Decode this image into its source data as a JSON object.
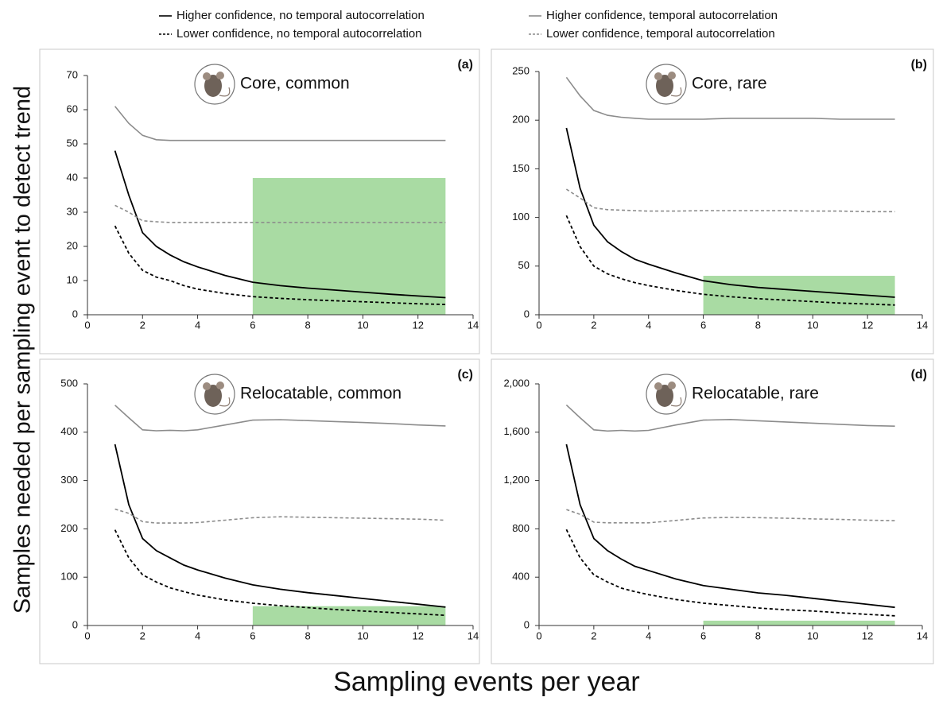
{
  "legend": [
    "Higher confidence, no temporal autocorrelation",
    "Lower confidence, no temporal autocorrelation",
    "Higher confidence, temporal autocorrelation",
    "Lower confidence, temporal autocorrelation"
  ],
  "x_label": "Sampling events per year",
  "y_label": "Samples needed per sampling event to detect trend",
  "chart_data": [
    {
      "type": "line",
      "panel": "(a)",
      "title": "Core, common",
      "x": [
        1,
        1.5,
        2,
        2.5,
        3,
        3.5,
        4,
        5,
        6,
        7,
        8,
        9,
        10,
        11,
        12,
        13
      ],
      "xlim": [
        0,
        14
      ],
      "xticks": [
        0,
        2,
        4,
        6,
        8,
        10,
        12,
        14
      ],
      "ylim": [
        0,
        70
      ],
      "yticks": [
        0,
        10,
        20,
        30,
        40,
        50,
        60,
        70
      ],
      "highlight": {
        "x": [
          6,
          13
        ],
        "y": [
          0,
          40
        ],
        "color": "#a9dba3"
      },
      "series": [
        {
          "color": "#000000",
          "dashed": false,
          "values": [
            48,
            35,
            24,
            20,
            17.5,
            15.5,
            14,
            11.5,
            9.5,
            8.5,
            7.8,
            7.2,
            6.6,
            6,
            5.5,
            5
          ]
        },
        {
          "color": "#000000",
          "dashed": true,
          "values": [
            26,
            18,
            13,
            11,
            10,
            8.5,
            7.5,
            6.2,
            5.3,
            4.8,
            4.4,
            4.1,
            3.8,
            3.5,
            3.2,
            3
          ]
        },
        {
          "color": "#8c8c8c",
          "dashed": false,
          "values": [
            61,
            56,
            52.5,
            51.2,
            51,
            51,
            51,
            51,
            51,
            51,
            51,
            51,
            51,
            51,
            51,
            51
          ]
        },
        {
          "color": "#8c8c8c",
          "dashed": true,
          "values": [
            32,
            30,
            27.5,
            27.2,
            27,
            27,
            27,
            27,
            27,
            27,
            27,
            27,
            27,
            27,
            27,
            27
          ]
        }
      ]
    },
    {
      "type": "line",
      "panel": "(b)",
      "title": "Core, rare",
      "x": [
        1,
        1.5,
        2,
        2.5,
        3,
        3.5,
        4,
        5,
        6,
        7,
        8,
        9,
        10,
        11,
        12,
        13
      ],
      "xlim": [
        0,
        14
      ],
      "xticks": [
        0,
        2,
        4,
        6,
        8,
        10,
        12,
        14
      ],
      "ylim": [
        0,
        250
      ],
      "yticks": [
        0,
        50,
        100,
        150,
        200,
        250
      ],
      "highlight": {
        "x": [
          6,
          13
        ],
        "y": [
          0,
          40
        ],
        "color": "#a9dba3"
      },
      "series": [
        {
          "color": "#000000",
          "dashed": false,
          "values": [
            192,
            130,
            92,
            75,
            65,
            57,
            52,
            43,
            35,
            31,
            28,
            26,
            24,
            22,
            20,
            18
          ]
        },
        {
          "color": "#000000",
          "dashed": true,
          "values": [
            102,
            70,
            50,
            42,
            37,
            33,
            30,
            25,
            21,
            18.5,
            16.5,
            15,
            13.5,
            12,
            11,
            10
          ]
        },
        {
          "color": "#8c8c8c",
          "dashed": false,
          "values": [
            244,
            225,
            210,
            205,
            203,
            202,
            201,
            201,
            201,
            202,
            202,
            202,
            202,
            201,
            201,
            201
          ]
        },
        {
          "color": "#8c8c8c",
          "dashed": true,
          "values": [
            129,
            120,
            110,
            108,
            107.5,
            107,
            106.5,
            106.5,
            107,
            107,
            107,
            107,
            106.5,
            106.5,
            106,
            106
          ]
        }
      ]
    },
    {
      "type": "line",
      "panel": "(c)",
      "title": "Relocatable, common",
      "x": [
        1,
        1.5,
        2,
        2.5,
        3,
        3.5,
        4,
        5,
        6,
        7,
        8,
        9,
        10,
        11,
        12,
        13
      ],
      "xlim": [
        0,
        14
      ],
      "xticks": [
        0,
        2,
        4,
        6,
        8,
        10,
        12,
        14
      ],
      "ylim": [
        0,
        500
      ],
      "yticks": [
        0,
        100,
        200,
        300,
        400,
        500
      ],
      "highlight": {
        "x": [
          6,
          13
        ],
        "y": [
          0,
          40
        ],
        "color": "#a9dba3"
      },
      "series": [
        {
          "color": "#000000",
          "dashed": false,
          "values": [
            375,
            250,
            180,
            155,
            140,
            125,
            115,
            98,
            84,
            75,
            68,
            62,
            56,
            50,
            44,
            38
          ]
        },
        {
          "color": "#000000",
          "dashed": true,
          "values": [
            198,
            140,
            105,
            90,
            78,
            70,
            63,
            53,
            46,
            41,
            37,
            33,
            30,
            27,
            24,
            21
          ]
        },
        {
          "color": "#8c8c8c",
          "dashed": false,
          "values": [
            456,
            430,
            405,
            403,
            404,
            403,
            405,
            415,
            425,
            426,
            424,
            422,
            420,
            418,
            415,
            413
          ]
        },
        {
          "color": "#8c8c8c",
          "dashed": true,
          "values": [
            241,
            232,
            215,
            212,
            212,
            212,
            213,
            218,
            223,
            225,
            224,
            223,
            222,
            221,
            220,
            218
          ]
        }
      ]
    },
    {
      "type": "line",
      "panel": "(d)",
      "title": "Relocatable, rare",
      "x": [
        1,
        1.5,
        2,
        2.5,
        3,
        3.5,
        4,
        5,
        6,
        7,
        8,
        9,
        10,
        11,
        12,
        13
      ],
      "xlim": [
        0,
        14
      ],
      "xticks": [
        0,
        2,
        4,
        6,
        8,
        10,
        12,
        14
      ],
      "ylim": [
        0,
        2000
      ],
      "yticks": [
        0,
        400,
        800,
        {
          "value": 1200,
          "label": "1,200"
        },
        {
          "value": 1600,
          "label": "1,600"
        },
        {
          "value": 2000,
          "label": "2,000"
        }
      ],
      "highlight": {
        "x": [
          6,
          13
        ],
        "y": [
          0,
          40
        ],
        "color": "#a9dba3"
      },
      "series": [
        {
          "color": "#000000",
          "dashed": false,
          "values": [
            1500,
            1000,
            720,
            620,
            550,
            490,
            455,
            385,
            330,
            300,
            270,
            250,
            225,
            200,
            175,
            150
          ]
        },
        {
          "color": "#000000",
          "dashed": true,
          "values": [
            795,
            560,
            420,
            360,
            310,
            280,
            255,
            215,
            185,
            165,
            145,
            130,
            120,
            105,
            92,
            80
          ]
        },
        {
          "color": "#8c8c8c",
          "dashed": false,
          "values": [
            1825,
            1720,
            1620,
            1610,
            1615,
            1610,
            1615,
            1660,
            1700,
            1705,
            1695,
            1685,
            1675,
            1665,
            1655,
            1650
          ]
        },
        {
          "color": "#8c8c8c",
          "dashed": true,
          "values": [
            960,
            920,
            855,
            850,
            850,
            850,
            850,
            870,
            890,
            895,
            893,
            888,
            882,
            878,
            872,
            868
          ]
        }
      ]
    }
  ]
}
